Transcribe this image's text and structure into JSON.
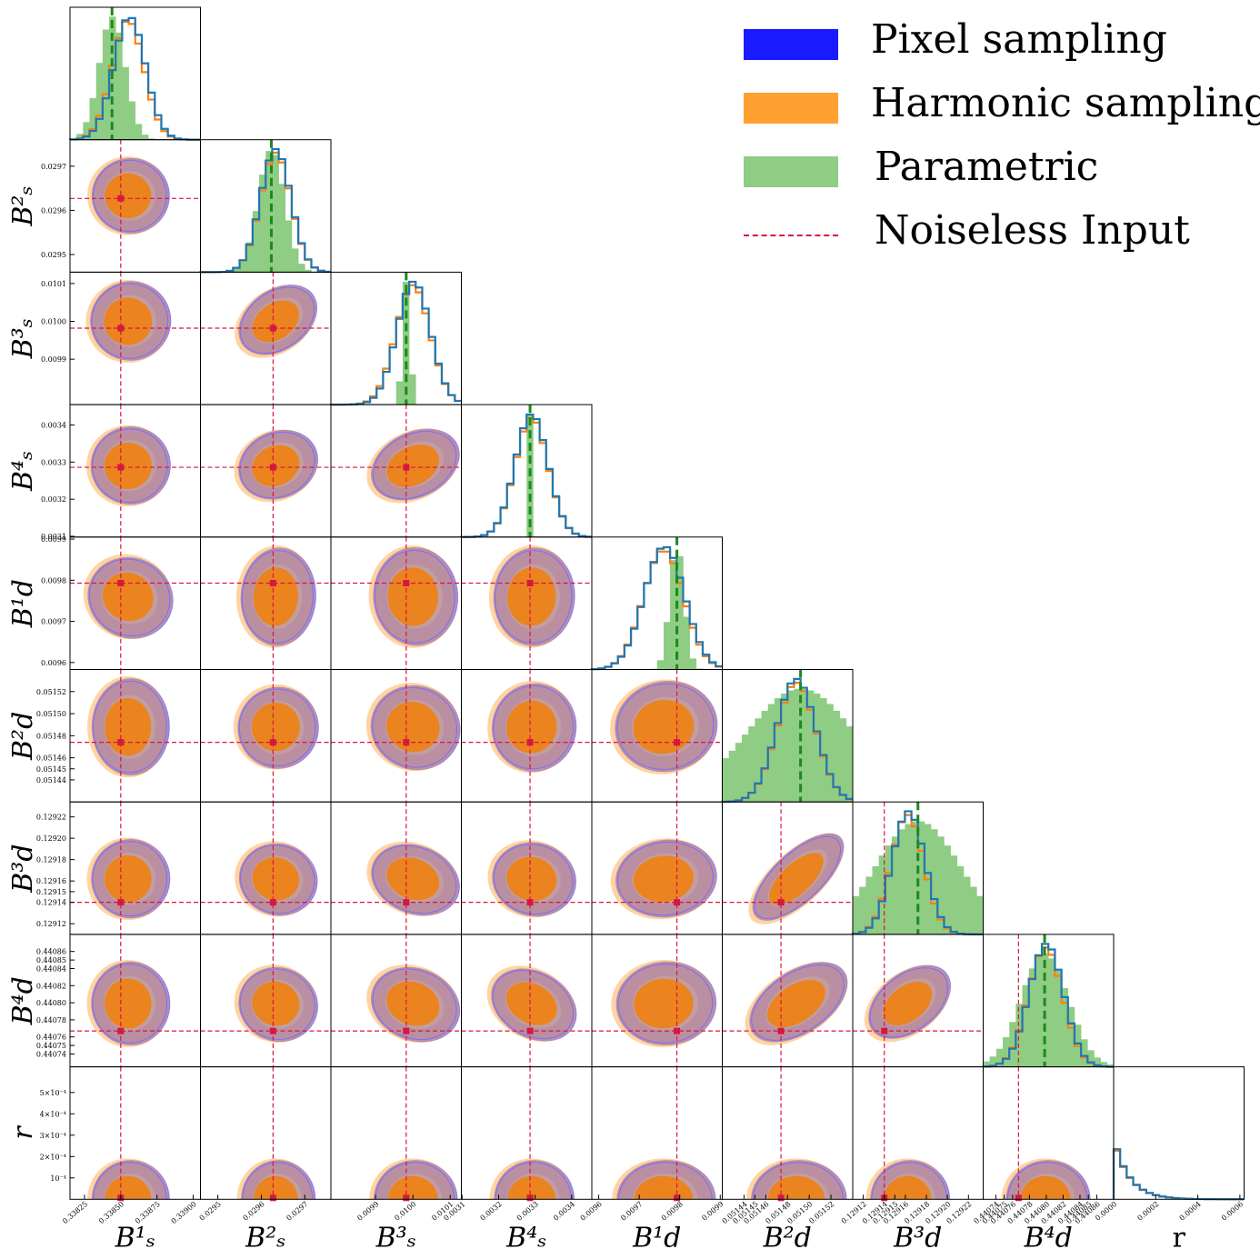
{
  "colors": {
    "pixel": "#1f77b4",
    "pixel_fill": "#1a1aff",
    "harmonic": "#ff7f0e",
    "harmonic_fill": "#ffa030",
    "parametric": "#2ca02c",
    "parametric_fill": "#8fcc84",
    "input": "#d6173f"
  },
  "legend": {
    "items": [
      {
        "label": "Pixel sampling",
        "kind": "pixel"
      },
      {
        "label": "Harmonic sampling",
        "kind": "harmonic"
      },
      {
        "label": "Parametric",
        "kind": "parametric"
      },
      {
        "label": "Noiseless Input",
        "kind": "input"
      }
    ]
  },
  "chart_data": {
    "type": "corner",
    "parameters": [
      {
        "name": "B_s^1",
        "base": "B",
        "sup": "1",
        "sub": "s",
        "range": [
          0.33815,
          0.33905
        ],
        "ticks": [
          0.33825,
          0.3385,
          0.33875,
          0.339
        ],
        "tick_labels": [
          "0.33825",
          "0.33850",
          "0.33875",
          "0.33900"
        ],
        "truth": 0.3385,
        "parametric_mean": 0.33844
      },
      {
        "name": "B_s^2",
        "base": "B",
        "sup": "2",
        "sub": "s",
        "range": [
          0.02946,
          0.02976
        ],
        "ticks": [
          0.0295,
          0.0296,
          0.0297
        ],
        "tick_labels": [
          "0.0295",
          "0.0296",
          "0.0297"
        ],
        "truth": 0.029627,
        "parametric_mean": 0.029623
      },
      {
        "name": "B_s^3",
        "base": "B",
        "sup": "3",
        "sub": "s",
        "range": [
          0.00978,
          0.01013
        ],
        "ticks": [
          0.0099,
          0.01,
          0.0101
        ],
        "tick_labels": [
          "0.0099",
          "0.0100",
          "0.0101"
        ],
        "truth": 0.009982,
        "parametric_mean": 0.009982
      },
      {
        "name": "B_s^4",
        "base": "B",
        "sup": "4",
        "sub": "s",
        "range": [
          0.003098,
          0.003455
        ],
        "ticks": [
          0.0031,
          0.0032,
          0.0033,
          0.0034
        ],
        "tick_labels": [
          "0.0031",
          "0.0032",
          "0.0033",
          "0.0034"
        ],
        "truth": 0.003286,
        "parametric_mean": 0.003286
      },
      {
        "name": "B_d^1",
        "base": "B",
        "sup": "1",
        "sub": "d",
        "range": [
          0.009583,
          0.009905
        ],
        "ticks": [
          0.0096,
          0.0097,
          0.0098,
          0.0099
        ],
        "tick_labels": [
          "0.0096",
          "0.0097",
          "0.0098",
          "0.0099"
        ],
        "truth": 0.009793,
        "parametric_mean": 0.009793
      },
      {
        "name": "B_d^2",
        "base": "B",
        "sup": "2",
        "sub": "d",
        "range": [
          0.05142,
          0.05154
        ],
        "ticks": [
          0.05144,
          0.05145,
          0.05146,
          0.05148,
          0.0515,
          0.05152
        ],
        "tick_labels": [
          "0.05144",
          "0.05145",
          "0.05146",
          "0.05148",
          "0.05150",
          "0.05152"
        ],
        "truth": 0.051474,
        "parametric_mean": 0.051492
      },
      {
        "name": "B_d^3",
        "base": "B",
        "sup": "3",
        "sub": "d",
        "range": [
          0.12911,
          0.129234
        ],
        "ticks": [
          0.12912,
          0.12914,
          0.12915,
          0.12916,
          0.12918,
          0.1292,
          0.12922
        ],
        "tick_labels": [
          "0.12912",
          "0.12914",
          "0.12915",
          "0.12916",
          "0.12918",
          "0.12920",
          "0.12922"
        ],
        "truth": 0.12914,
        "parametric_mean": 0.129172
      },
      {
        "name": "B_d^4",
        "base": "B",
        "sup": "4",
        "sub": "d",
        "range": [
          0.440725,
          0.44088
        ],
        "ticks": [
          0.44074,
          0.44075,
          0.44076,
          0.44078,
          0.4408,
          0.44082,
          0.44084,
          0.44085,
          0.44086
        ],
        "tick_labels": [
          "0.44074",
          "0.44075",
          "0.44076",
          "0.44078",
          "0.44080",
          "0.44082",
          "0.44084",
          "0.44085",
          "0.44086"
        ],
        "truth": 0.440767,
        "parametric_mean": 0.440798
      },
      {
        "name": "r",
        "base": "r",
        "sup": "",
        "sub": "",
        "range": [
          0.0,
          0.00062
        ],
        "ticks": [
          0.0,
          0.0002,
          0.0004,
          0.0006
        ],
        "tick_labels": [
          "0.0000",
          "0.0002",
          "0.0004",
          "0.0006"
        ],
        "truth": null,
        "parametric_mean": null
      }
    ],
    "r_row_ticks": [
      0.0001,
      0.0002,
      0.0003,
      0.0004,
      0.0005
    ],
    "r_row_tick_labels": [
      "10⁻⁴",
      "2×10⁻⁴",
      "3×10⁻⁴",
      "4×10⁻⁴",
      "5×10⁻⁴"
    ],
    "x_axis_labels": [
      "B¹ₛ",
      "B²ₛ",
      "B³ₛ",
      "B⁴ₛ",
      "B¹d",
      "B²d",
      "B³d",
      "B⁴d",
      "r"
    ],
    "y_axis_labels": [
      "B²ₛ",
      "B³ₛ",
      "B⁴ₛ",
      "B¹d",
      "B²d",
      "B³d",
      "B⁴d",
      "r"
    ],
    "marginals": [
      {
        "param": "B_s^1",
        "pixel": {
          "mean": 0.33856,
          "sd": 0.00011
        },
        "harmonic": {
          "mean": 0.33855,
          "sd": 0.00011
        },
        "parametric": {
          "mean": 0.33844,
          "sd": 9e-05
        }
      },
      {
        "param": "B_s^2",
        "pixel": {
          "mean": 0.029633,
          "sd": 3.5e-05
        },
        "harmonic": {
          "mean": 0.029633,
          "sd": 3.5e-05
        },
        "parametric": {
          "mean": 0.029623,
          "sd": 3e-05
        }
      },
      {
        "param": "B_s^3",
        "pixel": {
          "mean": 0.010002,
          "sd": 4.5e-05
        },
        "harmonic": {
          "mean": 0.01,
          "sd": 4.6e-05
        },
        "parametric": {
          "mean": 0.009982,
          "sd": 1e-05
        }
      },
      {
        "param": "B_s^4",
        "pixel": {
          "mean": 0.00329,
          "sd": 4.5e-05
        },
        "harmonic": {
          "mean": 0.00329,
          "sd": 4.5e-05
        },
        "parametric": {
          "mean": 0.003286,
          "sd": 4e-06
        }
      },
      {
        "param": "B_d^1",
        "pixel": {
          "mean": 0.009762,
          "sd": 5e-05
        },
        "harmonic": {
          "mean": 0.00976,
          "sd": 5e-05
        },
        "parametric": {
          "mean": 0.009793,
          "sd": 1.8e-05
        }
      },
      {
        "param": "B_d^2",
        "pixel": {
          "mean": 0.051488,
          "sd": 1.8e-05
        },
        "harmonic": {
          "mean": 0.051488,
          "sd": 1.8e-05
        },
        "parametric": {
          "mean": 0.051492,
          "sd": 5e-05
        }
      },
      {
        "param": "B_d^3",
        "pixel": {
          "mean": 0.129163,
          "sd": 1.55e-05
        },
        "harmonic": {
          "mean": 0.129162,
          "sd": 1.55e-05
        },
        "parametric": {
          "mean": 0.129172,
          "sd": 4e-05
        }
      },
      {
        "param": "B_d^4",
        "pixel": {
          "mean": 0.4408,
          "sd": 2.05e-05
        },
        "harmonic": {
          "mean": 0.440799,
          "sd": 2.05e-05
        },
        "parametric": {
          "mean": 0.440798,
          "sd": 2.8e-05
        }
      },
      {
        "param": "r",
        "pixel": {
          "mean": 0.0,
          "sd": 7.5e-05
        },
        "harmonic": {
          "mean": 0.0,
          "sd": 7.5e-05
        },
        "parametric": null
      }
    ],
    "contour_correlations": [
      [
        0
      ],
      [
        0.15,
        0.65
      ],
      [
        0.1,
        0.4,
        0.45
      ],
      [
        -0.45,
        -0.05,
        0.05,
        -0.05
      ],
      [
        0.0,
        -0.35,
        -0.3,
        -0.2,
        0.15
      ],
      [
        0.05,
        -0.25,
        -0.35,
        -0.2,
        0.1,
        0.85
      ],
      [
        0.05,
        -0.3,
        -0.35,
        -0.5,
        0.05,
        0.6,
        0.7
      ]
    ],
    "grid_on": false,
    "legend_position": "top-right"
  }
}
